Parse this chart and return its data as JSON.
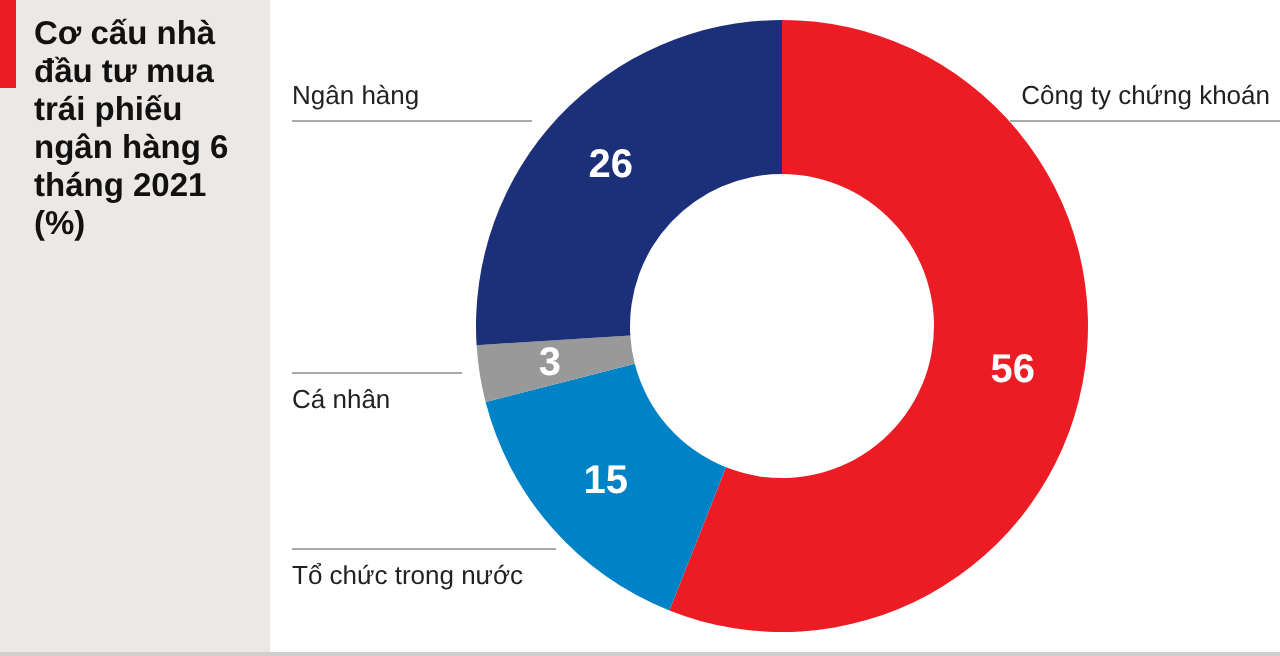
{
  "chart_data": {
    "type": "donut",
    "title": "Cơ cấu nhà đầu tư mua trái phiếu ngân hàng 6 tháng 2021 (%)",
    "categories": [
      "Công ty chứng khoán",
      "Tổ chức trong nước",
      "Cá nhân",
      "Ngân hàng"
    ],
    "values": [
      56,
      15,
      3,
      26
    ],
    "colors": [
      "#ec1c24",
      "#0082c6",
      "#999999",
      "#1c3079"
    ],
    "data_labels": true
  }
}
